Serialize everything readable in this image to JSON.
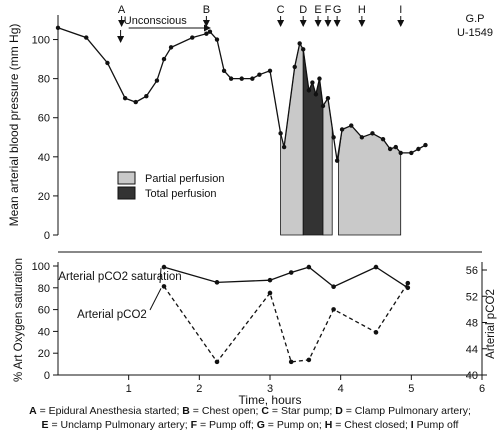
{
  "chart_data": [
    {
      "type": "line",
      "id": "top-panel",
      "patient_label": "G.P",
      "case_label": "U-1549",
      "ylabel": "Mean arterial blood pressure (mm Hg)",
      "ylim": [
        0,
        110
      ],
      "yticks": [
        0,
        20,
        40,
        60,
        80,
        100
      ],
      "xlim": [
        0,
        6
      ],
      "grid": false,
      "bp_series": {
        "name": "Mean arterial blood pressure",
        "points": [
          [
            0,
            106
          ],
          [
            0.4,
            101
          ],
          [
            0.7,
            88
          ],
          [
            0.95,
            70
          ],
          [
            1.1,
            68
          ],
          [
            1.25,
            71
          ],
          [
            1.4,
            79
          ],
          [
            1.5,
            90
          ],
          [
            1.6,
            96
          ],
          [
            1.9,
            101
          ],
          [
            2.1,
            103
          ],
          [
            2.15,
            104
          ],
          [
            2.25,
            100
          ],
          [
            2.35,
            84
          ],
          [
            2.45,
            80
          ],
          [
            2.6,
            80
          ],
          [
            2.75,
            80
          ],
          [
            2.85,
            82
          ],
          [
            3.0,
            84
          ],
          [
            3.15,
            52
          ],
          [
            3.2,
            45
          ],
          [
            3.35,
            86
          ],
          [
            3.42,
            98
          ],
          [
            3.47,
            95
          ],
          [
            3.55,
            74
          ],
          [
            3.6,
            78
          ],
          [
            3.65,
            72
          ],
          [
            3.7,
            80
          ],
          [
            3.75,
            66
          ],
          [
            3.82,
            70
          ],
          [
            3.9,
            50
          ],
          [
            3.95,
            38
          ],
          [
            4.02,
            54
          ],
          [
            4.15,
            56
          ],
          [
            4.3,
            50
          ],
          [
            4.45,
            52
          ],
          [
            4.6,
            49
          ],
          [
            4.7,
            44
          ],
          [
            4.78,
            45
          ],
          [
            4.85,
            42
          ],
          [
            5.0,
            42
          ],
          [
            5.1,
            44
          ],
          [
            5.2,
            46
          ]
        ]
      },
      "perfusion_regions": [
        {
          "name": "Partial perfusion",
          "color": "#c9c9c9",
          "points": [
            [
              3.15,
              0
            ],
            [
              3.15,
              52
            ],
            [
              3.2,
              45
            ],
            [
              3.35,
              86
            ],
            [
              3.42,
              98
            ],
            [
              3.47,
              95
            ],
            [
              3.47,
              0
            ]
          ]
        },
        {
          "name": "Total perfusion",
          "color": "#333333",
          "points": [
            [
              3.47,
              0
            ],
            [
              3.47,
              95
            ],
            [
              3.55,
              74
            ],
            [
              3.6,
              78
            ],
            [
              3.65,
              72
            ],
            [
              3.7,
              80
            ],
            [
              3.75,
              66
            ],
            [
              3.75,
              0
            ]
          ]
        },
        {
          "name": "Partial perfusion",
          "color": "#c9c9c9",
          "points": [
            [
              3.75,
              0
            ],
            [
              3.75,
              66
            ],
            [
              3.82,
              70
            ],
            [
              3.88,
              55
            ],
            [
              3.88,
              0
            ]
          ]
        },
        {
          "name": "Partial perfusion",
          "color": "#c9c9c9",
          "points": [
            [
              3.97,
              0
            ],
            [
              3.97,
              40
            ],
            [
              4.02,
              54
            ],
            [
              4.15,
              56
            ],
            [
              4.3,
              50
            ],
            [
              4.45,
              52
            ],
            [
              4.6,
              49
            ],
            [
              4.7,
              44
            ],
            [
              4.78,
              45
            ],
            [
              4.85,
              42
            ],
            [
              4.85,
              0
            ]
          ]
        }
      ],
      "legend": [
        {
          "label": "Partial perfusion",
          "color": "#c9c9c9"
        },
        {
          "label": "Total perfusion",
          "color": "#333333"
        }
      ],
      "event_markers": [
        {
          "label": "A",
          "x": 0.9
        },
        {
          "label": "B",
          "x": 2.1
        },
        {
          "label": "C",
          "x": 3.15
        },
        {
          "label": "D",
          "x": 3.47
        },
        {
          "label": "E",
          "x": 3.68
        },
        {
          "label": "F",
          "x": 3.82
        },
        {
          "label": "G",
          "x": 3.95
        },
        {
          "label": "H",
          "x": 4.3
        },
        {
          "label": "I",
          "x": 4.85
        }
      ],
      "annotation": {
        "text": "Unconscious",
        "x_start": 1.0,
        "x_end": 2.15
      }
    },
    {
      "type": "line",
      "id": "bottom-panel",
      "xlabel": "Time, hours",
      "xticks": [
        1,
        2,
        3,
        4,
        5,
        6
      ],
      "xlim": [
        0,
        6
      ],
      "ylabel_left": "% Art Oxygen saturation",
      "ylim_left": [
        0,
        100
      ],
      "yticks_left": [
        0,
        20,
        40,
        60,
        80,
        100
      ],
      "ylabel_right": "Arterial pCO2",
      "ylim_right": [
        40,
        56
      ],
      "yticks_right": [
        40,
        44,
        48,
        52,
        56
      ],
      "grid": false,
      "series": [
        {
          "name": "Arterial pCO2 saturation",
          "axis": "left",
          "style": "solid",
          "points": [
            [
              1.5,
              99
            ],
            [
              2.25,
              85
            ],
            [
              3.0,
              87
            ],
            [
              3.3,
              94
            ],
            [
              3.55,
              99
            ],
            [
              3.9,
              81
            ],
            [
              4.5,
              99
            ],
            [
              4.95,
              80
            ]
          ]
        },
        {
          "name": "Arterial pCO2",
          "axis": "right",
          "style": "dashed",
          "points": [
            [
              1.5,
              53.5
            ],
            [
              2.25,
              42
            ],
            [
              3.0,
              52.5
            ],
            [
              3.3,
              42
            ],
            [
              3.55,
              42.3
            ],
            [
              3.9,
              50
            ],
            [
              4.5,
              46.5
            ],
            [
              4.95,
              54
            ]
          ]
        }
      ]
    }
  ],
  "caption": [
    {
      "letter": "A",
      "text": " = Epidural Anesthesia started; "
    },
    {
      "letter": "B",
      "text": " = Chest open; "
    },
    {
      "letter": "C",
      "text": " = Star pump; "
    },
    {
      "letter": "D",
      "text": " = Clamp Pulmonary artery;"
    },
    {
      "letter": "E",
      "text": " = Unclamp Pulmonary artery; "
    },
    {
      "letter": "F",
      "text": " = Pump off; "
    },
    {
      "letter": "G",
      "text": " = Pump on; "
    },
    {
      "letter": "H",
      "text": " = Chest closed; "
    },
    {
      "letter": "I",
      "text": " Pump off"
    }
  ]
}
